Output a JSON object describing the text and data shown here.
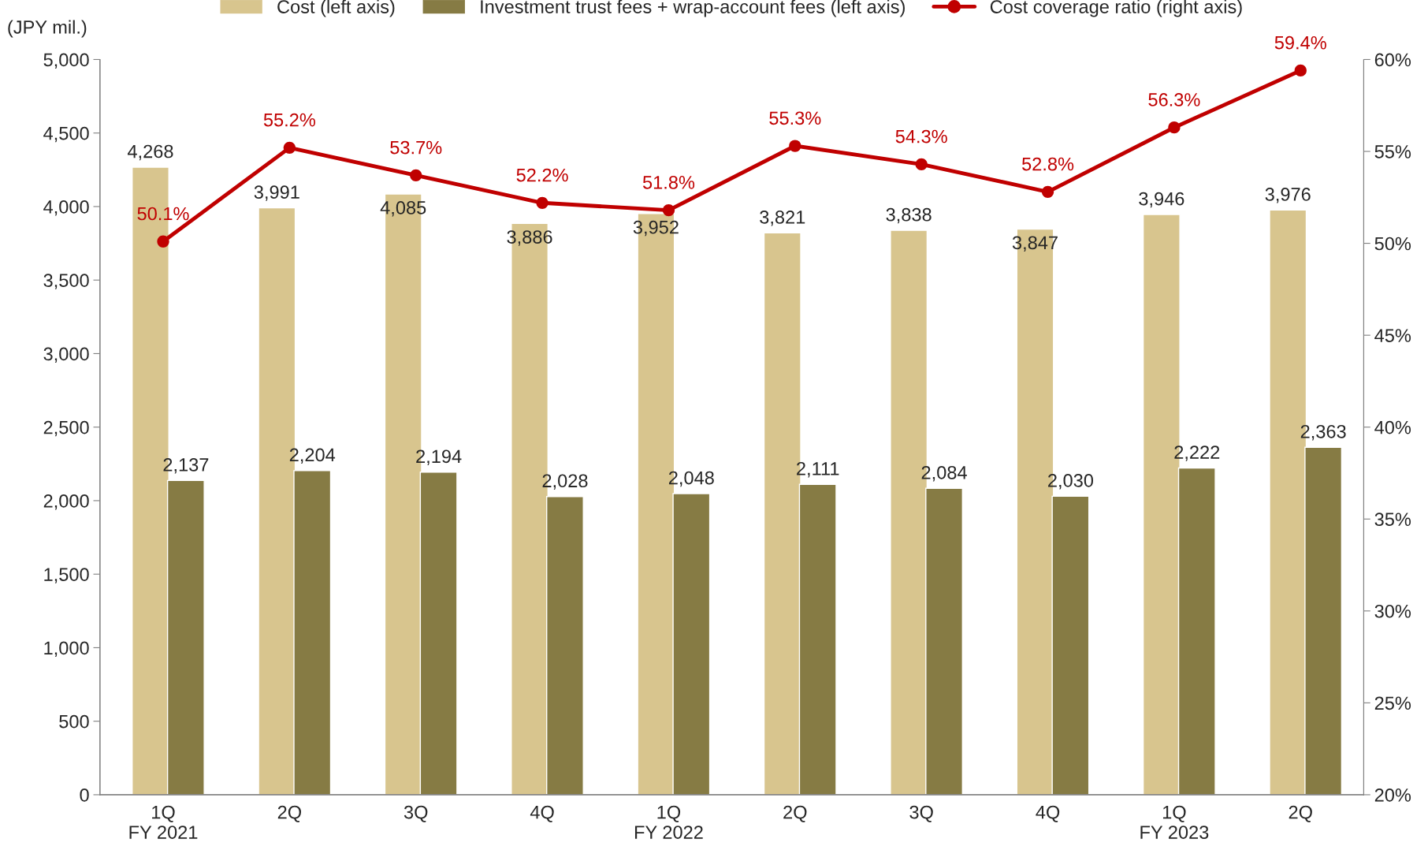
{
  "chart_data": {
    "type": "bar",
    "ylabel": "(JPY mil.)",
    "categories": [
      "1Q\nFY 2021",
      "2Q",
      "3Q",
      "4Q",
      "1Q\nFY 2022",
      "2Q",
      "3Q",
      "4Q",
      "1Q\nFY 2023",
      "2Q"
    ],
    "series": [
      {
        "name": "Cost (left axis)",
        "color": "#d8c58e",
        "value_labels": [
          "4,268",
          "3,991",
          "4,085",
          "3,886",
          "3,952",
          "3,821",
          "3,838",
          "3,847",
          "3,946",
          "3,976"
        ],
        "values": [
          4268,
          3991,
          4085,
          3886,
          3952,
          3821,
          3838,
          3847,
          3946,
          3976
        ]
      },
      {
        "name": "Investment trust fees + wrap-account fees (left axis)",
        "color": "#867b44",
        "value_labels": [
          "2,137",
          "2,204",
          "2,194",
          "2,028",
          "2,048",
          "2,111",
          "2,084",
          "2,030",
          "2,222",
          "2,363"
        ],
        "values": [
          2137,
          2204,
          2194,
          2028,
          2048,
          2111,
          2084,
          2030,
          2222,
          2363
        ]
      },
      {
        "name": "Cost coverage ratio (right axis)",
        "type": "line",
        "axis": "y2",
        "color": "#c00000",
        "marker": "circle",
        "value_labels": [
          "50.1%",
          "55.2%",
          "53.7%",
          "52.2%",
          "51.8%",
          "55.3%",
          "54.3%",
          "52.8%",
          "56.3%",
          "59.4%"
        ],
        "values": [
          50.1,
          55.2,
          53.7,
          52.2,
          51.8,
          55.3,
          54.3,
          52.8,
          56.3,
          59.4
        ]
      }
    ],
    "ylim": [
      0,
      5000
    ],
    "yticks": [
      0,
      500,
      {
        "value": 1000,
        "label": "1,000"
      },
      {
        "value": 1500,
        "label": "1,500"
      },
      {
        "value": 2000,
        "label": "2,000"
      },
      {
        "value": 2500,
        "label": "2,500"
      },
      {
        "value": 3000,
        "label": "3,000"
      },
      {
        "value": 3500,
        "label": "3,500"
      },
      {
        "value": 4000,
        "label": "4,000"
      },
      {
        "value": 4500,
        "label": "4,500"
      },
      {
        "value": 5000,
        "label": "5,000"
      }
    ],
    "y2lim": [
      20,
      60
    ],
    "y2ticks": [
      {
        "value": 20,
        "label": "20%"
      },
      {
        "value": 25,
        "label": "25%"
      },
      {
        "value": 30,
        "label": "30%"
      },
      {
        "value": 35,
        "label": "35%"
      },
      {
        "value": 40,
        "label": "40%"
      },
      {
        "value": 45,
        "label": "45%"
      },
      {
        "value": 50,
        "label": "50%"
      },
      {
        "value": 55,
        "label": "55%"
      },
      {
        "value": 60,
        "label": "60%"
      }
    ],
    "grid": false,
    "legend": "top"
  }
}
